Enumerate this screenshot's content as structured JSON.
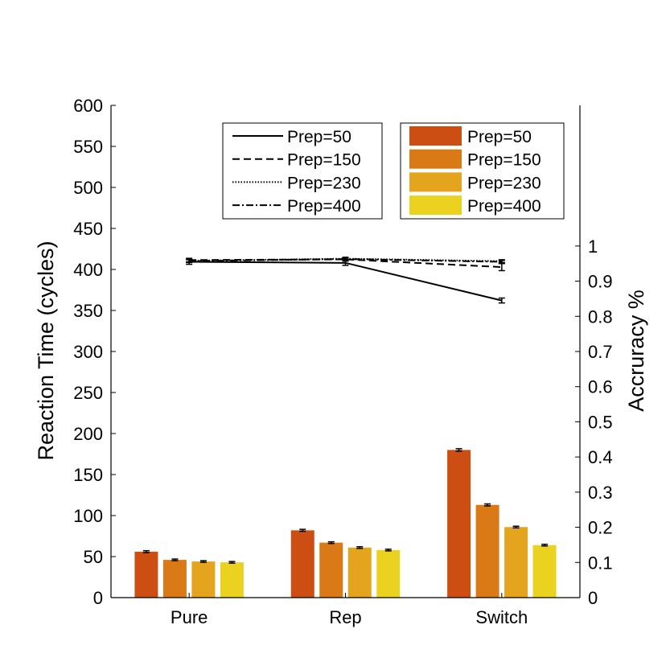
{
  "chart_data": {
    "type": "bar",
    "categories": [
      "Pure",
      "Rep",
      "Switch"
    ],
    "ylabel": "Reaction Time (cycles)",
    "y2label": "Accruracy %",
    "ylim": [
      0,
      600
    ],
    "y2lim": [
      0,
      1.4
    ],
    "yticks": [
      "0",
      "50",
      "100",
      "150",
      "200",
      "250",
      "300",
      "350",
      "400",
      "450",
      "500",
      "550",
      "600"
    ],
    "y2ticks": [
      "0",
      "0.1",
      "0.2",
      "0.3",
      "0.4",
      "0.5",
      "0.6",
      "0.7",
      "0.8",
      "0.9",
      "1"
    ],
    "bar_series": [
      {
        "name": "Prep=50",
        "color": "#cc4e12",
        "values": [
          56,
          82,
          180
        ],
        "errors": [
          1.2,
          1.2,
          1.5
        ]
      },
      {
        "name": "Prep=150",
        "color": "#d97a17",
        "values": [
          46,
          67,
          113
        ],
        "errors": [
          1.0,
          1.0,
          1.2
        ]
      },
      {
        "name": "Prep=230",
        "color": "#e4a41e",
        "values": [
          44,
          61,
          86
        ],
        "errors": [
          1.0,
          1.0,
          1.0
        ]
      },
      {
        "name": "Prep=400",
        "color": "#ecd220",
        "values": [
          43,
          58,
          64
        ],
        "errors": [
          1.0,
          1.0,
          1.0
        ]
      }
    ],
    "line_series": [
      {
        "name": "Prep=50",
        "dash": "solid",
        "values": [
          0.955,
          0.952,
          0.845
        ],
        "errors": [
          0.007,
          0.007,
          0.007
        ]
      },
      {
        "name": "Prep=150",
        "dash": "dashed",
        "values": [
          0.96,
          0.962,
          0.94
        ],
        "errors": [
          0.005,
          0.005,
          0.01
        ]
      },
      {
        "name": "Prep=230",
        "dash": "dotted",
        "values": [
          0.958,
          0.964,
          0.957
        ],
        "errors": [
          0.004,
          0.004,
          0.004
        ]
      },
      {
        "name": "Prep=400",
        "dash": "dash-dot",
        "values": [
          0.957,
          0.963,
          0.955
        ],
        "errors": [
          0.004,
          0.004,
          0.004
        ]
      }
    ]
  }
}
